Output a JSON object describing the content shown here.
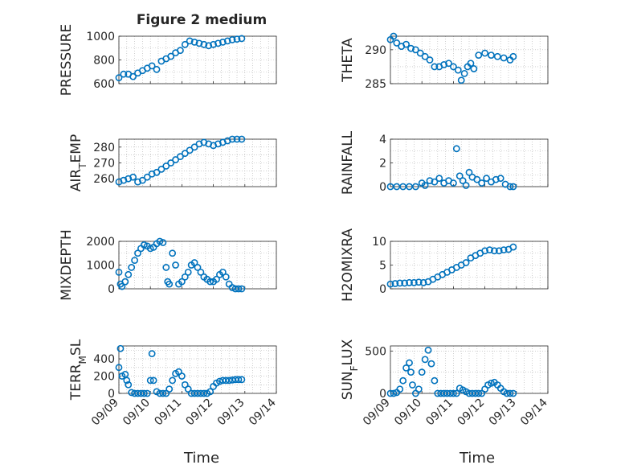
{
  "figure": {
    "title": "Figure 2 medium",
    "xlabel": "Time",
    "xticklabels": [
      "09/09",
      "09/10",
      "09/11",
      "09/12",
      "09/13",
      "09/14"
    ]
  },
  "colors": {
    "marker": "#0072BD",
    "axis": "#262626",
    "grid": "#b0b0b0"
  },
  "chart_data": [
    {
      "type": "scatter",
      "title": "Figure 2 medium",
      "ylabel": "PRESSURE",
      "xlim": [
        0,
        5
      ],
      "ylim": [
        600,
        1000
      ],
      "yticks": [
        600,
        800,
        1000
      ],
      "grid": true,
      "series": [
        {
          "x": [
            0.0,
            0.15,
            0.3,
            0.45,
            0.6,
            0.75,
            0.9,
            1.05,
            1.2,
            1.35,
            1.5,
            1.65,
            1.8,
            1.95,
            2.1,
            2.25,
            2.4,
            2.55,
            2.7,
            2.85,
            3.0,
            3.15,
            3.3,
            3.45,
            3.6,
            3.75,
            3.9
          ],
          "y": [
            650,
            680,
            680,
            660,
            690,
            710,
            730,
            750,
            720,
            790,
            810,
            830,
            860,
            880,
            930,
            960,
            950,
            940,
            930,
            920,
            930,
            940,
            950,
            960,
            970,
            975,
            980
          ]
        }
      ]
    },
    {
      "type": "scatter",
      "ylabel": "THETA",
      "xlim": [
        0,
        5
      ],
      "ylim": [
        285,
        292
      ],
      "yticks": [
        285,
        290
      ],
      "grid": true,
      "series": [
        {
          "x": [
            0.0,
            0.1,
            0.2,
            0.35,
            0.5,
            0.65,
            0.8,
            0.95,
            1.1,
            1.25,
            1.4,
            1.55,
            1.7,
            1.85,
            2.0,
            2.15,
            2.25,
            2.35,
            2.45,
            2.55,
            2.65,
            2.8,
            3.0,
            3.2,
            3.4,
            3.6,
            3.8,
            3.9
          ],
          "y": [
            291.5,
            292.0,
            291.0,
            290.5,
            290.8,
            290.2,
            290.0,
            289.5,
            289.0,
            288.5,
            287.5,
            287.5,
            287.8,
            288.0,
            287.5,
            287.0,
            285.5,
            286.5,
            287.5,
            288.0,
            287.2,
            289.2,
            289.5,
            289.2,
            289.0,
            288.8,
            288.5,
            289.0
          ]
        }
      ]
    },
    {
      "type": "scatter",
      "ylabel": "AIR_TEMP",
      "xlim": [
        0,
        5
      ],
      "ylim": [
        255,
        285
      ],
      "yticks": [
        260,
        270,
        280
      ],
      "grid": true,
      "series": [
        {
          "x": [
            0.0,
            0.15,
            0.3,
            0.45,
            0.6,
            0.75,
            0.9,
            1.05,
            1.2,
            1.35,
            1.5,
            1.65,
            1.8,
            1.95,
            2.1,
            2.25,
            2.4,
            2.55,
            2.7,
            2.85,
            3.0,
            3.15,
            3.3,
            3.45,
            3.6,
            3.75,
            3.9
          ],
          "y": [
            258,
            259,
            260,
            261,
            258,
            259,
            261,
            263,
            264,
            266,
            268,
            270,
            272,
            274,
            276,
            278,
            280,
            282,
            283,
            282,
            281,
            282,
            283,
            284,
            285,
            285,
            285
          ]
        }
      ]
    },
    {
      "type": "scatter",
      "ylabel": "RAINFALL",
      "xlim": [
        0,
        5
      ],
      "ylim": [
        0,
        4
      ],
      "yticks": [
        0,
        2,
        4
      ],
      "grid": true,
      "series": [
        {
          "x": [
            0.0,
            0.2,
            0.4,
            0.6,
            0.8,
            1.0,
            1.1,
            1.25,
            1.4,
            1.55,
            1.7,
            1.85,
            2.0,
            2.1,
            2.2,
            2.3,
            2.4,
            2.5,
            2.6,
            2.75,
            2.9,
            3.05,
            3.2,
            3.35,
            3.5,
            3.65,
            3.8,
            3.9
          ],
          "y": [
            0,
            0,
            0,
            0,
            0,
            0.3,
            0.1,
            0.5,
            0.4,
            0.7,
            0.3,
            0.5,
            0.3,
            3.2,
            0.9,
            0.5,
            0.1,
            1.2,
            0.8,
            0.6,
            0.3,
            0.7,
            0.4,
            0.6,
            0.7,
            0.2,
            0,
            0
          ]
        }
      ]
    },
    {
      "type": "scatter",
      "ylabel": "MIXDEPTH",
      "xlim": [
        0,
        5
      ],
      "ylim": [
        0,
        2000
      ],
      "yticks": [
        0,
        1000,
        2000
      ],
      "grid": true,
      "series": [
        {
          "x": [
            0.0,
            0.05,
            0.1,
            0.2,
            0.3,
            0.4,
            0.5,
            0.6,
            0.7,
            0.8,
            0.9,
            1.0,
            1.1,
            1.2,
            1.3,
            1.4,
            1.5,
            1.55,
            1.6,
            1.7,
            1.8,
            1.9,
            2.0,
            2.1,
            2.2,
            2.3,
            2.4,
            2.5,
            2.6,
            2.7,
            2.8,
            2.9,
            3.0,
            3.1,
            3.2,
            3.3,
            3.4,
            3.5,
            3.6,
            3.7,
            3.8,
            3.9
          ],
          "y": [
            700,
            200,
            100,
            300,
            600,
            900,
            1200,
            1500,
            1700,
            1850,
            1800,
            1700,
            1750,
            1900,
            2000,
            1950,
            900,
            300,
            200,
            1500,
            1000,
            200,
            300,
            500,
            700,
            1000,
            1100,
            900,
            700,
            500,
            400,
            300,
            300,
            400,
            600,
            700,
            500,
            200,
            50,
            0,
            0,
            0
          ]
        }
      ]
    },
    {
      "type": "scatter",
      "ylabel": "H2OMIXRA",
      "xlim": [
        0,
        5
      ],
      "ylim": [
        0,
        10
      ],
      "yticks": [
        0,
        5,
        10
      ],
      "grid": true,
      "series": [
        {
          "x": [
            0.0,
            0.15,
            0.3,
            0.45,
            0.6,
            0.75,
            0.9,
            1.05,
            1.2,
            1.35,
            1.5,
            1.65,
            1.8,
            1.95,
            2.1,
            2.25,
            2.4,
            2.55,
            2.7,
            2.85,
            3.0,
            3.15,
            3.3,
            3.45,
            3.6,
            3.75,
            3.9
          ],
          "y": [
            1.0,
            1.1,
            1.2,
            1.2,
            1.3,
            1.3,
            1.4,
            1.3,
            1.5,
            2.0,
            2.5,
            3.0,
            3.5,
            4.0,
            4.5,
            5.0,
            5.5,
            6.5,
            7.0,
            7.5,
            8.0,
            8.2,
            8.0,
            8.0,
            8.2,
            8.3,
            8.8
          ]
        }
      ]
    },
    {
      "type": "scatter",
      "ylabel": "TERR_MSL",
      "xlim": [
        0,
        5
      ],
      "ylim": [
        0,
        550
      ],
      "yticks": [
        0,
        200,
        400
      ],
      "grid": true,
      "series": [
        {
          "x": [
            0.0,
            0.05,
            0.1,
            0.2,
            0.25,
            0.3,
            0.4,
            0.5,
            0.6,
            0.7,
            0.8,
            0.9,
            1.0,
            1.05,
            1.1,
            1.2,
            1.3,
            1.4,
            1.5,
            1.6,
            1.7,
            1.8,
            1.9,
            2.0,
            2.1,
            2.2,
            2.3,
            2.4,
            2.5,
            2.6,
            2.7,
            2.8,
            2.9,
            3.0,
            3.1,
            3.2,
            3.3,
            3.4,
            3.5,
            3.6,
            3.7,
            3.8,
            3.9
          ],
          "y": [
            300,
            520,
            200,
            220,
            150,
            100,
            10,
            0,
            0,
            0,
            0,
            0,
            150,
            460,
            150,
            20,
            0,
            0,
            0,
            50,
            150,
            230,
            250,
            200,
            100,
            50,
            0,
            0,
            0,
            0,
            0,
            0,
            20,
            80,
            120,
            140,
            150,
            150,
            150,
            155,
            160,
            160,
            160
          ]
        }
      ]
    },
    {
      "type": "scatter",
      "ylabel": "SUN_FLUX",
      "xlim": [
        0,
        5
      ],
      "ylim": [
        0,
        560
      ],
      "yticks": [
        0,
        500
      ],
      "grid": true,
      "series": [
        {
          "x": [
            0.0,
            0.1,
            0.2,
            0.3,
            0.4,
            0.5,
            0.6,
            0.65,
            0.7,
            0.8,
            0.9,
            1.0,
            1.1,
            1.2,
            1.3,
            1.4,
            1.5,
            1.6,
            1.7,
            1.8,
            1.9,
            2.0,
            2.1,
            2.2,
            2.3,
            2.4,
            2.5,
            2.6,
            2.7,
            2.8,
            2.9,
            3.0,
            3.1,
            3.2,
            3.3,
            3.4,
            3.5,
            3.6,
            3.7,
            3.8,
            3.9
          ],
          "y": [
            0,
            0,
            10,
            50,
            150,
            300,
            360,
            250,
            100,
            0,
            50,
            250,
            400,
            510,
            350,
            150,
            0,
            0,
            0,
            0,
            0,
            0,
            0,
            60,
            40,
            20,
            0,
            0,
            0,
            0,
            0,
            50,
            100,
            120,
            130,
            100,
            60,
            20,
            0,
            0,
            0
          ]
        }
      ]
    }
  ]
}
